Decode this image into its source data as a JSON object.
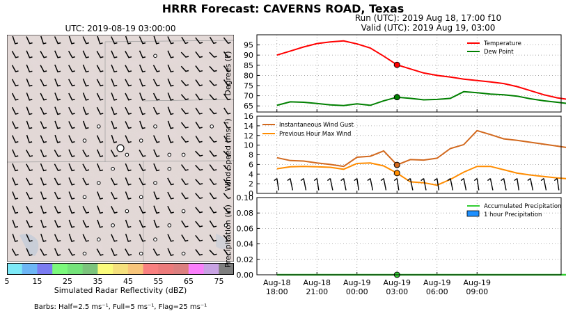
{
  "header": {
    "title": "HRRR Forecast: CAVERNS ROAD, Texas",
    "run": "Run (UTC): 2019 Aug 18, 17:00 f10",
    "valid": "Valid (UTC): 2019 Aug 19, 03:00"
  },
  "map": {
    "title": "UTC: 2019-08-19 03:00:00",
    "colorbar_label": "Simulated Radar Reflectivity (dBZ)",
    "colorbar_ticks": [
      "5",
      "15",
      "25",
      "35",
      "45",
      "55",
      "65",
      "75"
    ],
    "colorbar_colors": [
      "#7de9f7",
      "#6db6f5",
      "#7b7cf2",
      "#7bf97b",
      "#75e37a",
      "#7cc47c",
      "#fafb7b",
      "#f5e07c",
      "#f8c57a",
      "#f98080",
      "#ec7b7b",
      "#dc7f7f",
      "#fb7ffb",
      "#c8a2e3",
      "#7f7f7f"
    ],
    "barb_note": "Barbs: Half=2.5 ms⁻¹, Full=5 ms⁻¹, Flag=25 ms⁻¹"
  },
  "chart_data": [
    {
      "type": "line",
      "ylabel": "Degrees (F)",
      "ylim": [
        62,
        100
      ],
      "yticks": [
        65,
        70,
        75,
        80,
        85,
        90,
        95
      ],
      "grid": true,
      "legend_position": "top-right",
      "x_hours_since_start": [
        0,
        1,
        2,
        3,
        4,
        5,
        6,
        7,
        8,
        9,
        10,
        11,
        12,
        13,
        14,
        15,
        16,
        17,
        18,
        19,
        20,
        21,
        22
      ],
      "series": [
        {
          "name": "Temperature",
          "color": "#ff0000",
          "values": [
            90,
            92,
            94,
            95.7,
            96.5,
            97,
            95.5,
            93.5,
            89.5,
            85.2,
            83.2,
            81.2,
            80,
            79.2,
            78.2,
            77.5,
            76.8,
            76,
            74.5,
            72.5,
            70.5,
            69,
            68
          ]
        },
        {
          "name": "Dew Point",
          "color": "#008000",
          "values": [
            65.3,
            67,
            66.8,
            66.2,
            65.5,
            65.2,
            66,
            65.3,
            67.5,
            69.3,
            68.7,
            68,
            68.2,
            68.7,
            72,
            71.5,
            70.8,
            70.5,
            69.8,
            68.5,
            67.5,
            66.8,
            66
          ]
        }
      ],
      "highlight_hour": 9
    },
    {
      "type": "line",
      "ylabel": "Wind Speed (ms⁻¹)",
      "ylim": [
        0,
        16
      ],
      "yticks": [
        0,
        2,
        4,
        6,
        8,
        10,
        12,
        14,
        16
      ],
      "grid": true,
      "legend_position": "top-left",
      "x_hours_since_start": [
        0,
        1,
        2,
        3,
        4,
        5,
        6,
        7,
        8,
        9,
        10,
        11,
        12,
        13,
        14,
        15,
        16,
        17,
        18,
        19,
        20,
        21,
        22
      ],
      "series": [
        {
          "name": "Instantaneous Wind Gust",
          "color": "#d2691e",
          "values": [
            7.4,
            6.8,
            6.7,
            6.3,
            6.0,
            5.6,
            7.5,
            7.7,
            8.8,
            5.9,
            7.0,
            6.9,
            7.3,
            9.3,
            10.1,
            13.0,
            12.2,
            11.3,
            11.0,
            10.6,
            10.2,
            9.8,
            9.4
          ]
        },
        {
          "name": "Previous Hour Max Wind",
          "color": "#ff8c00",
          "values": [
            5.1,
            5.5,
            5.6,
            5.5,
            5.4,
            5.0,
            6.2,
            6.3,
            5.7,
            4.2,
            2.4,
            2.2,
            1.7,
            2.9,
            4.4,
            5.6,
            5.6,
            4.9,
            4.2,
            3.8,
            3.5,
            3.2,
            3.0
          ]
        }
      ],
      "highlight_hour": 9
    },
    {
      "type": "bar",
      "ylabel": "Precipitation (in)",
      "ylim": [
        0,
        0.1
      ],
      "yticks": [
        0.0,
        0.02,
        0.04,
        0.06,
        0.08,
        0.1
      ],
      "ytick_labels": [
        "0.00",
        "0.02",
        "0.04",
        "0.06",
        "0.08",
        "0.10"
      ],
      "grid": true,
      "legend_position": "top-right",
      "x_hours_since_start": [
        0,
        1,
        2,
        3,
        4,
        5,
        6,
        7,
        8,
        9,
        10,
        11,
        12,
        13,
        14,
        15,
        16,
        17,
        18,
        19,
        20,
        21,
        22
      ],
      "series": [
        {
          "name": "Accumulated Precipitation",
          "color": "#32cd32",
          "values": [
            0,
            0,
            0,
            0,
            0,
            0,
            0,
            0,
            0,
            0,
            0,
            0,
            0,
            0,
            0,
            0,
            0,
            0,
            0,
            0,
            0,
            0,
            0
          ]
        },
        {
          "name": "1 hour Precipitation",
          "color": "#1e90ff",
          "values": [
            0,
            0,
            0,
            0,
            0,
            0,
            0,
            0,
            0,
            0,
            0,
            0,
            0,
            0,
            0,
            0,
            0,
            0,
            0,
            0,
            0,
            0,
            0
          ]
        }
      ],
      "xtick_labels": [
        [
          "Aug-18",
          "18:00"
        ],
        [
          "Aug-18",
          "21:00"
        ],
        [
          "Aug-19",
          "00:00"
        ],
        [
          "Aug-19",
          "03:00"
        ],
        [
          "Aug-19",
          "06:00"
        ],
        [
          "Aug-19",
          "09:00"
        ]
      ],
      "xtick_hours": [
        0,
        3,
        6,
        9,
        12,
        15
      ],
      "highlight_hour": 9
    }
  ]
}
